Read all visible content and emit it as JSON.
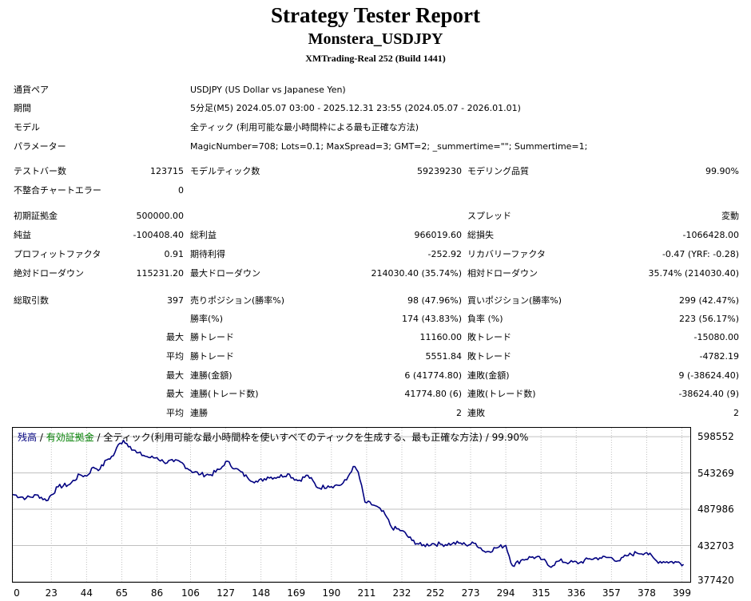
{
  "header": {
    "title": "Strategy Tester Report",
    "ea_name": "Monstera_USDJPY",
    "server": "XMTrading-Real 252 (Build 1441)"
  },
  "settings": [
    {
      "label": "通貨ペア",
      "value": "USDJPY (US Dollar vs Japanese Yen)"
    },
    {
      "label": "期間",
      "value": "5分足(M5) 2024.05.07 03:00 - 2025.12.31 23:55 (2024.05.07 - 2026.01.01)"
    },
    {
      "label": "モデル",
      "value": "全ティック (利用可能な最小時間枠による最も正確な方法)"
    },
    {
      "label": "パラメーター",
      "value": "MagicNumber=708; Lots=0.1; MaxSpread=3; GMT=2; _summertime=\"\"; Summertime=1;"
    }
  ],
  "stats": {
    "bars_label": "テストバー数",
    "bars_value": "123715",
    "ticks_label": "モデルティック数",
    "ticks_value": "59239230",
    "quality_label": "モデリング品質",
    "quality_value": "99.90%",
    "mismatch_label": "不整合チャートエラー",
    "mismatch_value": "0",
    "deposit_label": "初期証拠金",
    "deposit_value": "500000.00",
    "spread_label": "スプレッド",
    "spread_value": "変動",
    "net_label": "純益",
    "net_value": "-100408.40",
    "gross_profit_label": "総利益",
    "gross_profit_value": "966019.60",
    "gross_loss_label": "総損失",
    "gross_loss_value": "-1066428.00",
    "pf_label": "プロフィットファクタ",
    "pf_value": "0.91",
    "expected_label": "期待利得",
    "expected_value": "-252.92",
    "recovery_label": "リカバリーファクタ",
    "recovery_value": "-0.47 (YRF: -0.28)",
    "abs_dd_label": "絶対ドローダウン",
    "abs_dd_value": "115231.20",
    "max_dd_label": "最大ドローダウン",
    "max_dd_value": "214030.40 (35.74%)",
    "rel_dd_label": "相対ドローダウン",
    "rel_dd_value": "35.74% (214030.40)"
  },
  "trades": {
    "total_label": "総取引数",
    "total_value": "397",
    "short_label": "売りポジション(勝率%)",
    "short_value": "98 (47.96%)",
    "long_label": "買いポジション(勝率%)",
    "long_value": "299 (42.47%)",
    "win_pct_label": "勝率(%)",
    "win_pct_value": "174 (43.83%)",
    "loss_pct_label": "負率 (%)",
    "loss_pct_value": "223 (56.17%)",
    "max_word": "最大",
    "avg_word": "平均",
    "win_trade_label": "勝トレード",
    "loss_trade_label": "敗トレード",
    "max_win_trade": "11160.00",
    "max_loss_trade": "-15080.00",
    "avg_win_trade": "5551.84",
    "avg_loss_trade": "-4782.19",
    "consec_win_amt_label": "連勝(金額)",
    "consec_win_amt_value": "6 (41774.80)",
    "consec_loss_amt_label": "連敗(金額)",
    "consec_loss_amt_value": "9 (-38624.40)",
    "consec_win_cnt_label": "連勝(トレード数)",
    "consec_win_cnt_value": "41774.80 (6)",
    "consec_loss_cnt_label": "連敗(トレード数)",
    "consec_loss_cnt_value": "-38624.40 (9)",
    "avg_consec_win_label": "連勝",
    "avg_consec_win_value": "2",
    "avg_consec_loss_label": "連敗",
    "avg_consec_loss_value": "2"
  },
  "legend": {
    "balance": "残高",
    "sep1": " / ",
    "equity": "有効証拠金",
    "sep2": " / ",
    "model": "全ティック(利用可能な最小時間枠を使いすべてのティックを生成する、最も正確な方法)",
    "sep3": " / ",
    "quality": "99.90%"
  },
  "chart_data": {
    "type": "line",
    "series": [
      {
        "name": "残高",
        "x": [
          0,
          8,
          15,
          20,
          27,
          34,
          40,
          44,
          48,
          52,
          56,
          60,
          62,
          66,
          70,
          74,
          78,
          82,
          86,
          90,
          96,
          100,
          106,
          112,
          118,
          124,
          127,
          133,
          140,
          146,
          152,
          158,
          164,
          170,
          176,
          182,
          188,
          192,
          196,
          199,
          203,
          206,
          210,
          216,
          222,
          226,
          232,
          238,
          244,
          250,
          256,
          262,
          266,
          270,
          276,
          282,
          288,
          294,
          298,
          304,
          310,
          316,
          320,
          326,
          332,
          338,
          344,
          350,
          356,
          362,
          366,
          372,
          378,
          384,
          390,
          396,
          400
        ],
        "y": [
          510500,
          505000,
          509500,
          501000,
          522000,
          526000,
          540500,
          538500,
          552000,
          549000,
          563000,
          569500,
          582000,
          593000,
          583500,
          574000,
          570000,
          566500,
          566500,
          560000,
          560500,
          560000,
          547000,
          541000,
          540500,
          549500,
          561000,
          550000,
          536000,
          529500,
          537000,
          537000,
          542000,
          531500,
          539500,
          520500,
          523500,
          524000,
          525500,
          532500,
          553000,
          544500,
          499000,
          493500,
          480000,
          460000,
          455500,
          440500,
          432500,
          435500,
          434500,
          435500,
          436500,
          434000,
          436000,
          422500,
          429000,
          433000,
          402000,
          411500,
          415500,
          411500,
          401000,
          409500,
          407000,
          406500,
          412500,
          414000,
          414500,
          409500,
          417000,
          421500,
          422000,
          409000,
          408000,
          407500,
          404000
        ]
      }
    ],
    "ylim": [
      377420,
      612000
    ],
    "xlim": [
      0,
      404
    ],
    "yticks": [
      "598552",
      "543269",
      "487986",
      "432703",
      "377420"
    ],
    "ytick_values": [
      598552,
      543269,
      487986,
      432703,
      377420
    ],
    "xticks": [
      "0",
      "23",
      "44",
      "65",
      "86",
      "106",
      "127",
      "148",
      "169",
      "190",
      "211",
      "232",
      "252",
      "273",
      "294",
      "315",
      "336",
      "357",
      "378",
      "399"
    ],
    "xtick_values": [
      0,
      23,
      44,
      65,
      86,
      106,
      127,
      148,
      169,
      190,
      211,
      232,
      252,
      273,
      294,
      315,
      336,
      357,
      378,
      399
    ],
    "grid": true,
    "colors": {
      "balance": "#000080",
      "equity": "#008000",
      "grid": "#c0c0c0"
    }
  }
}
